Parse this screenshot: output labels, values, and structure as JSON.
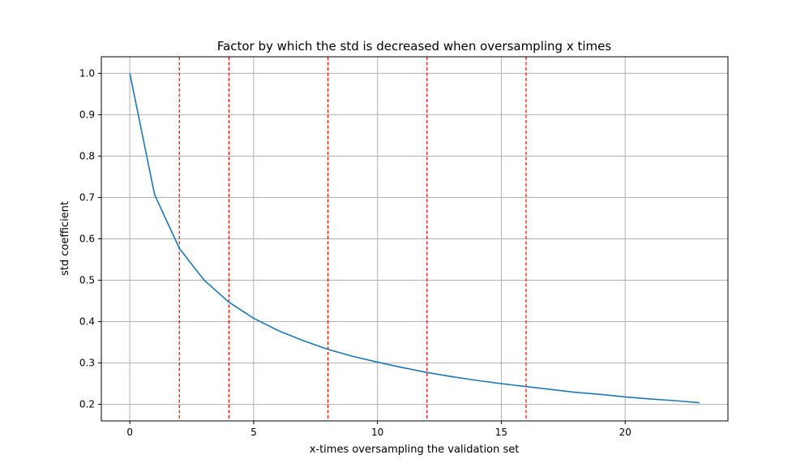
{
  "chart_data": {
    "type": "line",
    "title": "Factor by which the std is decreased when oversampling x times",
    "xlabel": "x-times oversampling the validation set",
    "ylabel": "std coefficient",
    "xlim": [
      -1.15,
      24.15
    ],
    "ylim": [
      0.16,
      1.04
    ],
    "xticks": [
      0,
      5,
      10,
      15,
      20
    ],
    "yticks": [
      0.2,
      0.3,
      0.4,
      0.5,
      0.6,
      0.7,
      0.8,
      0.9,
      1.0
    ],
    "xtick_labels": [
      "0",
      "5",
      "10",
      "15",
      "20"
    ],
    "ytick_labels": [
      "0.2",
      "0.3",
      "0.4",
      "0.5",
      "0.6",
      "0.7",
      "0.8",
      "0.9",
      "1.0"
    ],
    "grid": true,
    "series": [
      {
        "color": "#1f77b4",
        "x": [
          0,
          1,
          2,
          3,
          4,
          5,
          6,
          7,
          8,
          9,
          10,
          11,
          12,
          13,
          14,
          15,
          16,
          17,
          18,
          19,
          20,
          21,
          22,
          23
        ],
        "y": [
          1.0,
          0.707,
          0.577,
          0.5,
          0.447,
          0.408,
          0.378,
          0.354,
          0.333,
          0.316,
          0.302,
          0.289,
          0.277,
          0.267,
          0.258,
          0.25,
          0.243,
          0.236,
          0.229,
          0.224,
          0.218,
          0.213,
          0.209,
          0.204
        ]
      }
    ],
    "vlines": {
      "color": "#ff0000",
      "style": "dashed",
      "x": [
        2,
        4,
        8,
        12,
        16
      ]
    }
  }
}
